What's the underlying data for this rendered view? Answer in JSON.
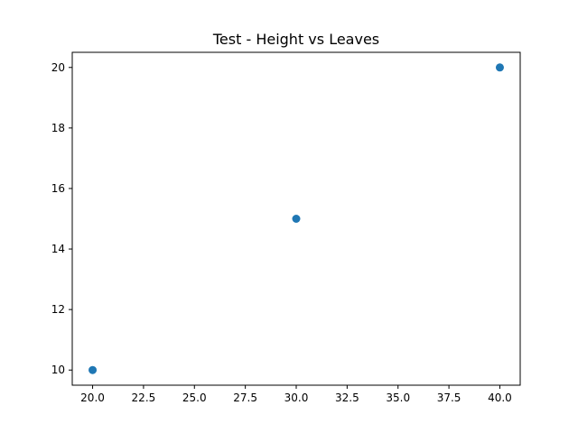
{
  "chart_data": {
    "type": "scatter",
    "title": "Test - Height vs Leaves",
    "xlabel": "",
    "ylabel": "",
    "x": [
      20,
      30,
      40
    ],
    "y": [
      10,
      15,
      20
    ],
    "xlim": [
      19,
      41
    ],
    "ylim": [
      9.5,
      20.5
    ],
    "xticks": [
      20.0,
      22.5,
      25.0,
      27.5,
      30.0,
      32.5,
      35.0,
      37.5,
      40.0
    ],
    "xtick_labels": [
      "20.0",
      "22.5",
      "25.0",
      "27.5",
      "30.0",
      "32.5",
      "35.0",
      "37.5",
      "40.0"
    ],
    "yticks": [
      10,
      12,
      14,
      16,
      18,
      20
    ],
    "ytick_labels": [
      "10",
      "12",
      "14",
      "16",
      "18",
      "20"
    ],
    "grid": false,
    "legend": "none",
    "marker_color": "#1f77b4"
  }
}
